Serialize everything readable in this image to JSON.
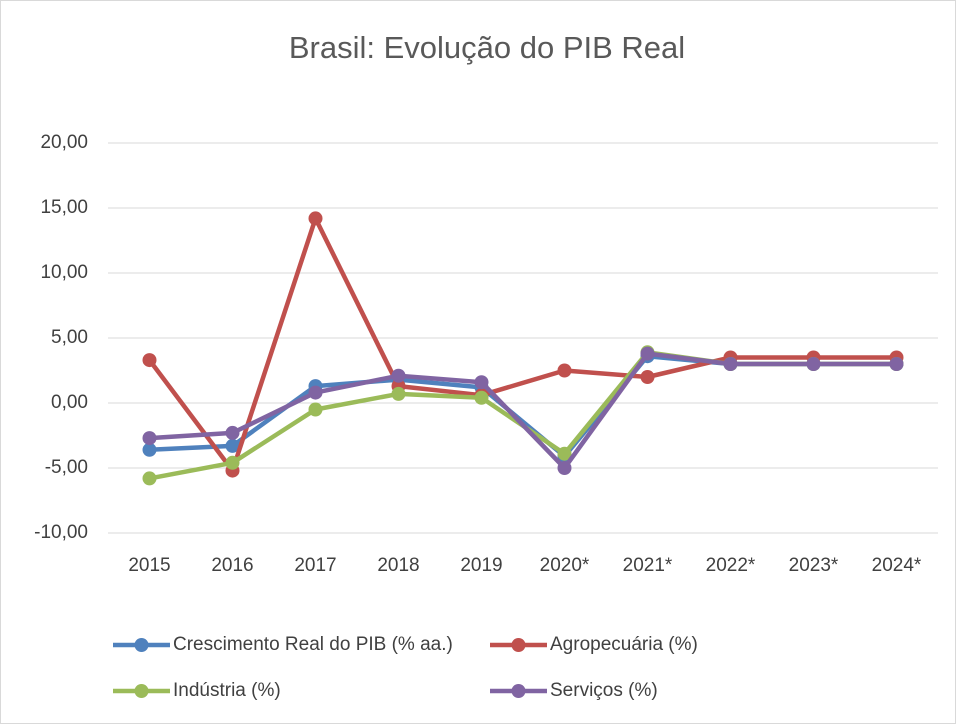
{
  "chart_data": {
    "type": "line",
    "title": "Brasil: Evolução do PIB Real",
    "categories": [
      "2015",
      "2016",
      "2017",
      "2018",
      "2019",
      "2020*",
      "2021*",
      "2022*",
      "2023*",
      "2024*"
    ],
    "series": [
      {
        "name": "Crescimento Real do PIB (% aa.)",
        "color": "#4f81bd",
        "values": [
          -3.6,
          -3.3,
          1.3,
          1.8,
          1.2,
          -4.1,
          3.6,
          3.0,
          3.0,
          3.0
        ]
      },
      {
        "name": "Agropecuária (%)",
        "color": "#c0504d",
        "values": [
          3.3,
          -5.2,
          14.2,
          1.3,
          0.6,
          2.5,
          2.0,
          3.5,
          3.5,
          3.5
        ]
      },
      {
        "name": "Indústria (%)",
        "color": "#9bbb59",
        "values": [
          -5.8,
          -4.6,
          -0.5,
          0.7,
          0.4,
          -3.9,
          3.9,
          3.0,
          3.0,
          3.0
        ]
      },
      {
        "name": "Serviços (%)",
        "color": "#8064a2",
        "values": [
          -2.7,
          -2.3,
          0.8,
          2.1,
          1.6,
          -5.0,
          3.8,
          3.0,
          3.0,
          3.0
        ]
      }
    ],
    "ylim": [
      -10,
      20
    ],
    "yticks": [
      {
        "value": -10,
        "label": "-10,00"
      },
      {
        "value": -5,
        "label": "-5,00"
      },
      {
        "value": 0,
        "label": "0,00"
      },
      {
        "value": 5,
        "label": "5,00"
      },
      {
        "value": 10,
        "label": "10,00"
      },
      {
        "value": 15,
        "label": "15,00"
      },
      {
        "value": 20,
        "label": "20,00"
      }
    ],
    "grid": true,
    "legend": "bottom"
  }
}
